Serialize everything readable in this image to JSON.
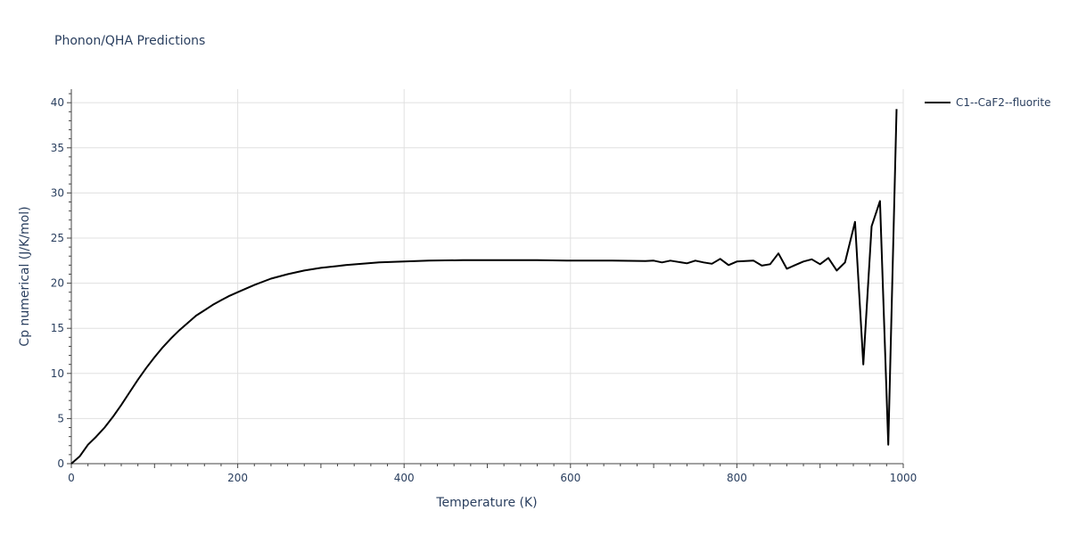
{
  "chart_data": {
    "type": "line",
    "title": "Phonon/QHA Predictions",
    "xlabel": "Temperature (K)",
    "ylabel": "Cp numerical (J/K/mol)",
    "xlim": [
      0,
      1000
    ],
    "ylim": [
      0,
      41.5
    ],
    "x_ticks": [
      0,
      200,
      400,
      600,
      800,
      1000
    ],
    "y_ticks": [
      0,
      5,
      10,
      15,
      20,
      25,
      30,
      35,
      40
    ],
    "x_tick_labels": [
      "0",
      "200",
      "400",
      "600",
      "800",
      "1000"
    ],
    "y_tick_labels": [
      "0",
      "5",
      "10",
      "15",
      "20",
      "25",
      "30",
      "35",
      "40"
    ],
    "grid": true,
    "legend_position": "top-right",
    "colors": {
      "series": "#000000",
      "grid": "#e0e0e0",
      "text": "#2a3f5f"
    },
    "series": [
      {
        "name": "C1--CaF2--fluorite",
        "x": [
          0,
          10,
          20,
          30,
          40,
          50,
          60,
          70,
          80,
          90,
          100,
          110,
          120,
          130,
          140,
          150,
          160,
          170,
          180,
          190,
          200,
          220,
          240,
          260,
          280,
          300,
          330,
          370,
          400,
          430,
          470,
          500,
          530,
          560,
          600,
          650,
          690,
          700,
          710,
          720,
          730,
          740,
          750,
          760,
          770,
          780,
          790,
          800,
          810,
          820,
          830,
          840,
          850,
          860,
          870,
          880,
          890,
          900,
          910,
          920,
          930,
          942,
          952,
          962,
          972,
          982,
          992
        ],
        "y": [
          0,
          0.8,
          2.1,
          3.0,
          4.0,
          5.2,
          6.5,
          7.9,
          9.3,
          10.6,
          11.8,
          12.9,
          13.9,
          14.8,
          15.6,
          16.4,
          17.0,
          17.6,
          18.1,
          18.6,
          19.0,
          19.8,
          20.5,
          21.0,
          21.4,
          21.7,
          22.0,
          22.3,
          22.4,
          22.5,
          22.55,
          22.55,
          22.55,
          22.55,
          22.5,
          22.5,
          22.45,
          22.5,
          22.3,
          22.5,
          22.35,
          22.2,
          22.5,
          22.3,
          22.15,
          22.7,
          22.0,
          22.4,
          22.45,
          22.5,
          21.95,
          22.1,
          23.3,
          21.6,
          22.0,
          22.4,
          22.65,
          22.1,
          22.8,
          21.4,
          22.3,
          26.8,
          11.0,
          26.3,
          29.1,
          2.1,
          39.3
        ]
      }
    ]
  }
}
